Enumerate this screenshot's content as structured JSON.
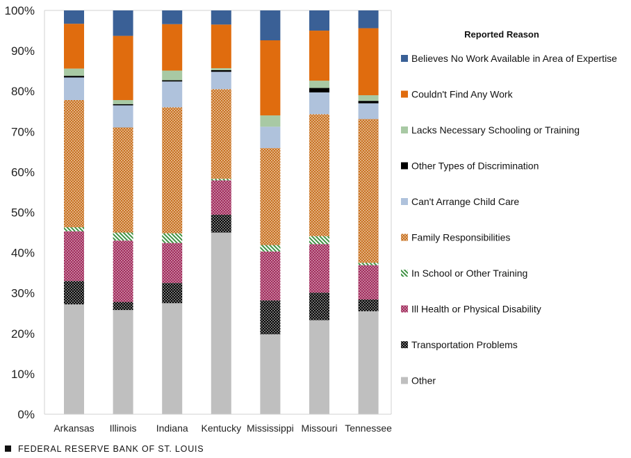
{
  "chart_data": {
    "type": "stacked-bar",
    "categories": [
      "Arkansas",
      "Illinois",
      "Indiana",
      "Kentucky",
      "Mississippi",
      "Missouri",
      "Tennessee"
    ],
    "y_ticks": [
      "0%",
      "10%",
      "20%",
      "30%",
      "40%",
      "50%",
      "60%",
      "70%",
      "80%",
      "90%",
      "100%"
    ],
    "ylim": [
      0,
      100
    ],
    "legend_title": "Reported Reason",
    "series": [
      {
        "name": "Other",
        "color": "#BFBFBF",
        "pattern": "solid",
        "values": [
          27.2,
          25.8,
          27.5,
          45.0,
          19.8,
          23.3,
          25.5
        ]
      },
      {
        "name": "Transportation Problems",
        "color": "#000000",
        "pattern": "dots-dark",
        "values": [
          5.8,
          2.0,
          5.0,
          4.4,
          8.4,
          6.8,
          2.9
        ]
      },
      {
        "name": "Ill Health or Physical Disability",
        "color": "#A33060",
        "pattern": "dots-magenta",
        "values": [
          12.3,
          15.2,
          9.9,
          8.5,
          12.1,
          12.0,
          8.5
        ]
      },
      {
        "name": "In School or Other Training",
        "color": "#3E9142",
        "pattern": "hatch",
        "values": [
          1.0,
          2.0,
          2.4,
          0.4,
          1.6,
          2.0,
          0.6
        ]
      },
      {
        "name": "Family Responsibilities",
        "color": "#D46B14",
        "pattern": "dots-orange",
        "values": [
          31.5,
          26.0,
          31.2,
          22.2,
          24.0,
          30.2,
          35.6
        ]
      },
      {
        "name": "Can't Arrange Child Care",
        "color": "#AFC2DC",
        "pattern": "solid",
        "values": [
          5.6,
          5.5,
          6.4,
          4.3,
          5.3,
          5.4,
          3.9
        ]
      },
      {
        "name": "Other Types of Discrimination",
        "color": "#000000",
        "pattern": "solid",
        "values": [
          0.4,
          0.3,
          0.3,
          0.4,
          0.0,
          1.1,
          0.6
        ]
      },
      {
        "name": "Lacks Necessary Schooling or Training",
        "color": "#A8C9A4",
        "pattern": "solid",
        "values": [
          1.8,
          1.0,
          2.4,
          0.5,
          2.8,
          1.8,
          1.4
        ]
      },
      {
        "name": "Couldn't Find Any Work",
        "color": "#E06C0E",
        "pattern": "solid",
        "values": [
          11.1,
          15.9,
          11.5,
          10.8,
          18.6,
          12.4,
          16.6
        ]
      },
      {
        "name": "Believes No Work Available in Area of Expertise",
        "color": "#3A6096",
        "pattern": "solid",
        "values": [
          3.3,
          6.3,
          3.4,
          3.5,
          7.4,
          5.0,
          4.4
        ]
      }
    ]
  },
  "footer": {
    "source": "FEDERAL RESERVE BANK OF ST. LOUIS"
  }
}
